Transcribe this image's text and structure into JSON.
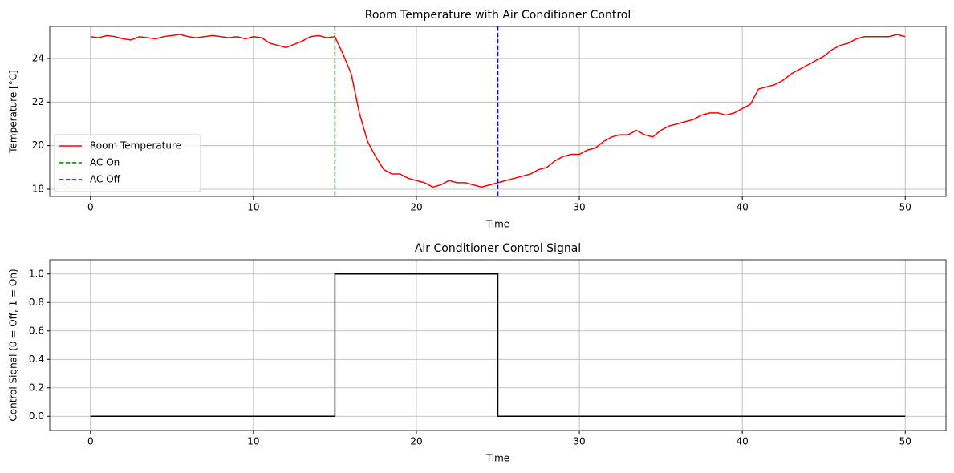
{
  "chart_data": [
    {
      "type": "line",
      "title": "Room Temperature with Air Conditioner Control",
      "x_label": "Time",
      "y_label": "Temperature [°C]",
      "x": [
        0,
        0.5,
        1,
        1.5,
        2,
        2.5,
        3,
        3.5,
        4,
        4.5,
        5,
        5.5,
        6,
        6.5,
        7,
        7.5,
        8,
        8.5,
        9,
        9.5,
        10,
        10.5,
        11,
        11.5,
        12,
        12.5,
        13,
        13.5,
        14,
        14.5,
        15,
        15.5,
        16,
        16.5,
        17,
        17.5,
        18,
        18.5,
        19,
        19.5,
        20,
        20.5,
        21,
        21.5,
        22,
        22.5,
        23,
        23.5,
        24,
        24.5,
        25,
        25.5,
        26,
        26.5,
        27,
        27.5,
        28,
        28.5,
        29,
        29.5,
        30,
        30.5,
        31,
        31.5,
        32,
        32.5,
        33,
        33.5,
        34,
        34.5,
        35,
        35.5,
        36,
        36.5,
        37,
        37.5,
        38,
        38.5,
        39,
        39.5,
        40,
        40.5,
        41,
        41.5,
        42,
        42.5,
        43,
        43.5,
        44,
        44.5,
        45,
        45.5,
        46,
        46.5,
        47,
        47.5,
        48,
        48.5,
        49,
        49.5,
        50
      ],
      "series": [
        {
          "name": "Room Temperature",
          "color": "#ff0000",
          "values": [
            25.0,
            24.95,
            25.05,
            25.0,
            24.9,
            24.85,
            25.0,
            24.95,
            24.9,
            25.0,
            25.05,
            25.1,
            25.0,
            24.95,
            25.0,
            25.05,
            25.0,
            24.95,
            25.0,
            24.9,
            25.0,
            24.95,
            24.7,
            24.6,
            24.5,
            24.65,
            24.8,
            25.0,
            25.05,
            24.95,
            25.0,
            24.2,
            23.3,
            21.5,
            20.2,
            19.5,
            18.9,
            18.7,
            18.7,
            18.5,
            18.4,
            18.3,
            18.1,
            18.2,
            18.4,
            18.3,
            18.3,
            18.2,
            18.1,
            18.2,
            18.3,
            18.4,
            18.5,
            18.6,
            18.7,
            18.9,
            19.0,
            19.3,
            19.5,
            19.6,
            19.6,
            19.8,
            19.9,
            20.2,
            20.4,
            20.5,
            20.5,
            20.7,
            20.5,
            20.4,
            20.7,
            20.9,
            21.0,
            21.1,
            21.2,
            21.4,
            21.5,
            21.5,
            21.4,
            21.5,
            21.7,
            21.9,
            22.6,
            22.7,
            22.8,
            23.0,
            23.3,
            23.5,
            23.7,
            23.9,
            24.1,
            24.4,
            24.6,
            24.7,
            24.9,
            25.0,
            25.0,
            25.0,
            25.0,
            25.1,
            25.0
          ]
        }
      ],
      "vlines": [
        {
          "name": "AC On",
          "x": 15,
          "color": "#008000"
        },
        {
          "name": "AC Off",
          "x": 25,
          "color": "#0000ff"
        }
      ],
      "xlim": [
        -2.5,
        52.5
      ],
      "xticks": [
        0,
        10,
        20,
        30,
        40,
        50
      ],
      "ylim": [
        17.67,
        25.47
      ],
      "yticks": [
        18,
        20,
        22,
        24
      ],
      "grid": true,
      "legend": "lower left"
    },
    {
      "type": "line",
      "title": "Air Conditioner Control Signal",
      "x_label": "Time",
      "y_label": "Control Signal (0 = Off, 1 = On)",
      "x": [
        0,
        15,
        15,
        25,
        25,
        50
      ],
      "series": [
        {
          "name": "Control Signal",
          "color": "#000000",
          "values": [
            0,
            0,
            1,
            1,
            0,
            0
          ]
        }
      ],
      "xlim": [
        -2.5,
        52.5
      ],
      "xticks": [
        0,
        10,
        20,
        30,
        40,
        50
      ],
      "ylim": [
        -0.1,
        1.1
      ],
      "yticks": [
        {
          "value": 0,
          "label": "0.0"
        },
        0.2,
        0.4,
        0.6,
        0.8,
        {
          "value": 1,
          "label": "1.0"
        }
      ],
      "grid": true
    }
  ]
}
